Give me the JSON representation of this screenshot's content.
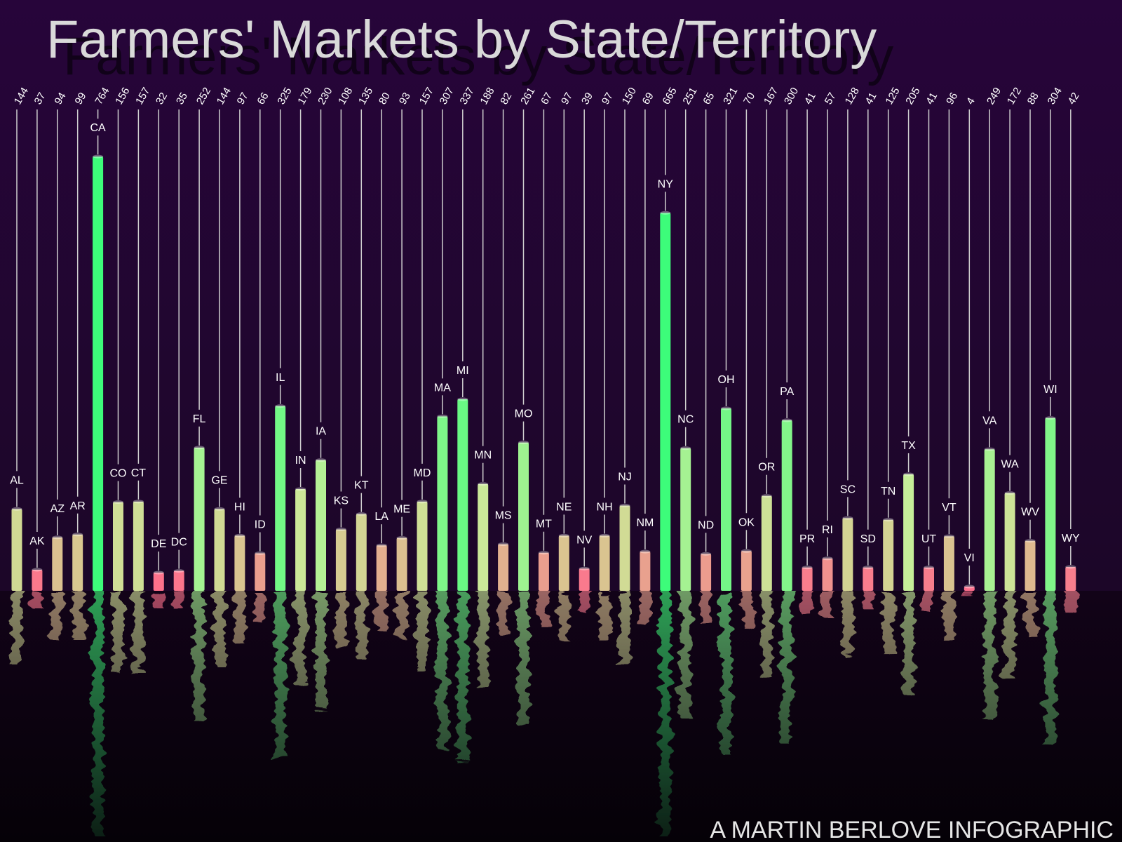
{
  "credit": "A MARTIN BERLOVE INFOGRAPHIC",
  "colors": {
    "background": "#1c0628",
    "title": "#d9d9d9",
    "high": "#3dfc7a",
    "mid": "#c9ee9a",
    "low": "#ff6f8c",
    "leader": "#cfcfcf"
  },
  "chart_data": {
    "type": "bar",
    "title": "Farmers' Markets by State/Territory",
    "xlabel": "",
    "ylabel": "",
    "ylim": [
      0,
      800
    ],
    "grid": false,
    "legend": "none",
    "categories": [
      "AL",
      "AK",
      "AZ",
      "AR",
      "CA",
      "CO",
      "CT",
      "DE",
      "DC",
      "FL",
      "GE",
      "HI",
      "ID",
      "IL",
      "IN",
      "IA",
      "KS",
      "KT",
      "LA",
      "ME",
      "MD",
      "MA",
      "MI",
      "MN",
      "MS",
      "MO",
      "MT",
      "NE",
      "NV",
      "NH",
      "NJ",
      "NM",
      "NY",
      "NC",
      "ND",
      "OH",
      "OK",
      "OR",
      "PA",
      "PR",
      "RI",
      "SC",
      "SD",
      "TN",
      "TX",
      "UT",
      "VT",
      "VI",
      "VA",
      "WA",
      "WV",
      "WI",
      "WY"
    ],
    "values": [
      144,
      37,
      94,
      99,
      764,
      156,
      157,
      32,
      35,
      252,
      144,
      97,
      66,
      325,
      179,
      230,
      108,
      135,
      80,
      93,
      157,
      307,
      337,
      188,
      82,
      261,
      67,
      97,
      39,
      97,
      150,
      69,
      665,
      251,
      65,
      321,
      70,
      167,
      300,
      41,
      57,
      128,
      41,
      125,
      205,
      41,
      96,
      4,
      249,
      172,
      88,
      304,
      42
    ],
    "value_labels": [
      "144",
      "37",
      "94",
      "99",
      "764",
      "156",
      "157",
      "32",
      "35",
      "252",
      "144",
      "97",
      "66",
      "325",
      "179",
      "230",
      "108",
      "135",
      "80",
      "93",
      "157",
      "307",
      "337",
      "188",
      "82",
      "261",
      "67",
      "97",
      "39",
      "97",
      "150",
      "69",
      "665",
      "251",
      "65",
      "321",
      "70",
      "167",
      "300",
      "41",
      "57",
      "128",
      "41",
      "125",
      "205",
      "41",
      "96",
      "4",
      "249",
      "172",
      "88",
      "304",
      "42"
    ]
  }
}
